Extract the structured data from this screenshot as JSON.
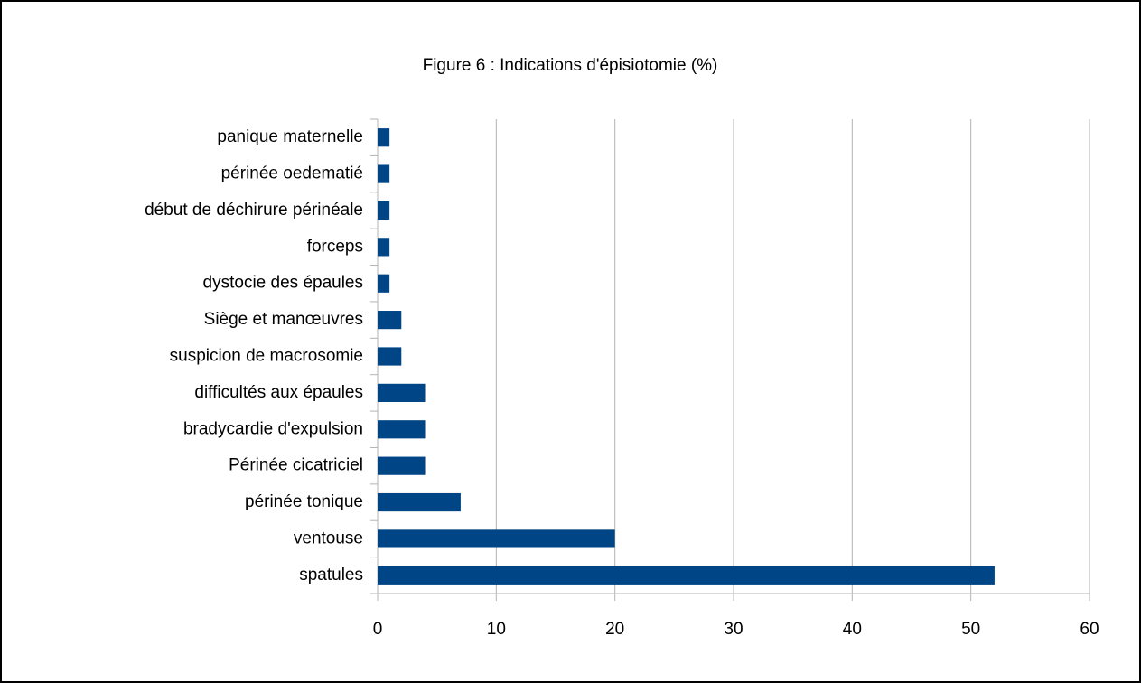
{
  "chart_data": {
    "type": "barh",
    "title": "Figure 6 : Indications d'épisiotomie (%)",
    "categories": [
      "panique maternelle",
      "périnée oedematié",
      "début de déchirure périnéale",
      "forceps",
      "dystocie des épaules",
      "Siège et manœuvres",
      "suspicion de macrosomie",
      "difficultés aux épaules",
      "bradycardie d'expulsion",
      "Périnée cicatriciel",
      "périnée tonique",
      "ventouse",
      "spatules"
    ],
    "values": [
      1,
      1,
      1,
      1,
      1,
      2,
      2,
      4,
      4,
      4,
      7,
      20,
      52
    ],
    "color": "#004586",
    "xlim": [
      0,
      60
    ],
    "xticks": [
      0,
      10,
      20,
      30,
      40,
      50,
      60
    ],
    "grid": true
  }
}
